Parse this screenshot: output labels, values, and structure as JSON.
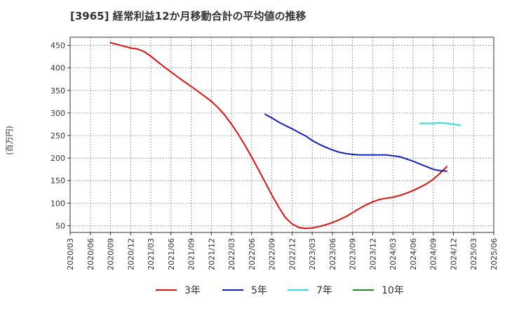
{
  "chart_data": {
    "type": "line",
    "title": "[3965]  経常利益12か月移動合計の平均値の推移",
    "xlabel": "",
    "ylabel": "(百万円)",
    "ylim": [
      35,
      468
    ],
    "yticks": [
      50,
      100,
      150,
      200,
      250,
      300,
      350,
      400,
      450
    ],
    "xticks": [
      "2020/03",
      "2020/06",
      "2020/09",
      "2020/12",
      "2021/03",
      "2021/06",
      "2021/09",
      "2021/12",
      "2022/03",
      "2022/06",
      "2022/09",
      "2022/12",
      "2023/03",
      "2023/06",
      "2023/09",
      "2023/12",
      "2024/03",
      "2024/06",
      "2024/09",
      "2024/12",
      "2025/03",
      "2025/06"
    ],
    "grid": true,
    "legend_position": "bottom",
    "series": [
      {
        "name": "3年",
        "color": "#dd1111",
        "points": [
          [
            2,
            456
          ],
          [
            2.67,
            448
          ],
          [
            3,
            444
          ],
          [
            3.33,
            442
          ],
          [
            3.67,
            436
          ],
          [
            4,
            426
          ],
          [
            4.33,
            414
          ],
          [
            4.67,
            402
          ],
          [
            5,
            391
          ],
          [
            5.33,
            380
          ],
          [
            5.67,
            369
          ],
          [
            6,
            359
          ],
          [
            6.33,
            348
          ],
          [
            6.67,
            337
          ],
          [
            7,
            326
          ],
          [
            7.33,
            312
          ],
          [
            7.67,
            295
          ],
          [
            8,
            275
          ],
          [
            8.33,
            253
          ],
          [
            8.67,
            228
          ],
          [
            9,
            202
          ],
          [
            9.33,
            175
          ],
          [
            9.67,
            146
          ],
          [
            10,
            118
          ],
          [
            10.33,
            92
          ],
          [
            10.67,
            68
          ],
          [
            11,
            54
          ],
          [
            11.33,
            46
          ],
          [
            11.67,
            44
          ],
          [
            12,
            45
          ],
          [
            12.33,
            48
          ],
          [
            12.67,
            52
          ],
          [
            13,
            57
          ],
          [
            13.33,
            63
          ],
          [
            13.67,
            70
          ],
          [
            14,
            79
          ],
          [
            14.33,
            88
          ],
          [
            14.67,
            96
          ],
          [
            15,
            103
          ],
          [
            15.33,
            108
          ],
          [
            15.67,
            111
          ],
          [
            16,
            113
          ],
          [
            16.33,
            117
          ],
          [
            16.67,
            122
          ],
          [
            17,
            128
          ],
          [
            17.33,
            135
          ],
          [
            17.67,
            143
          ],
          [
            18,
            153
          ],
          [
            18.33,
            166
          ],
          [
            18.67,
            181
          ]
        ]
      },
      {
        "name": "5年",
        "color": "#1122bb",
        "points": [
          [
            9.67,
            297
          ],
          [
            10,
            289
          ],
          [
            10.33,
            280
          ],
          [
            10.67,
            272
          ],
          [
            11,
            265
          ],
          [
            11.33,
            257
          ],
          [
            11.67,
            249
          ],
          [
            12,
            239
          ],
          [
            12.33,
            231
          ],
          [
            12.67,
            224
          ],
          [
            13,
            218
          ],
          [
            13.33,
            213
          ],
          [
            13.67,
            210
          ],
          [
            14,
            208
          ],
          [
            14.33,
            207
          ],
          [
            14.67,
            207
          ],
          [
            15,
            207
          ],
          [
            15.33,
            207
          ],
          [
            15.67,
            207
          ],
          [
            16,
            205
          ],
          [
            16.33,
            203
          ],
          [
            16.67,
            198
          ],
          [
            17,
            193
          ],
          [
            17.33,
            187
          ],
          [
            17.67,
            181
          ],
          [
            18,
            175
          ],
          [
            18.33,
            172
          ],
          [
            18.67,
            171
          ]
        ]
      },
      {
        "name": "7年",
        "color": "#33dddd",
        "points": [
          [
            17.33,
            277
          ],
          [
            17.67,
            277
          ],
          [
            18,
            277
          ],
          [
            18.33,
            278
          ],
          [
            18.67,
            277
          ],
          [
            19,
            275
          ],
          [
            19.33,
            273
          ]
        ]
      },
      {
        "name": "10年",
        "color": "#228822",
        "points": []
      }
    ]
  }
}
